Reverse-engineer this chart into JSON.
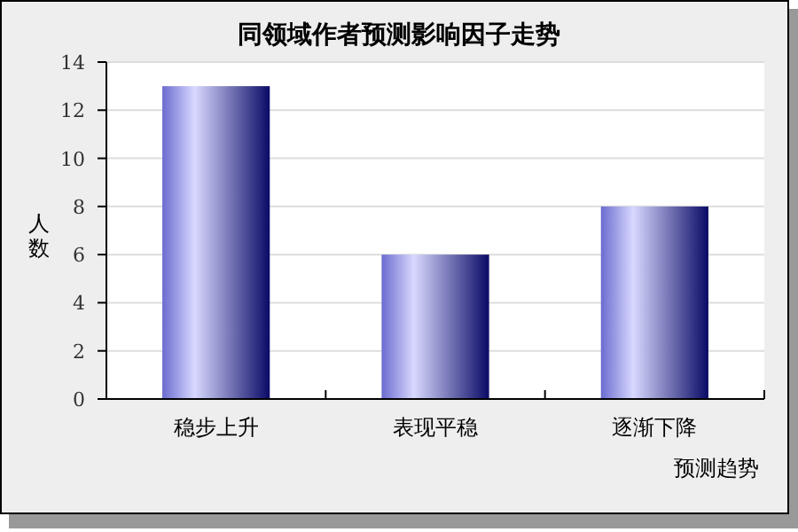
{
  "chart_data": {
    "type": "bar",
    "title": "同领域作者预测影响因子走势",
    "xlabel": "预测趋势",
    "ylabel": "人数",
    "categories": [
      "稳步上升",
      "表现平稳",
      "逐渐下降"
    ],
    "values": [
      13,
      6,
      8
    ],
    "color": "#6b6bd0",
    "ylim": [
      0,
      14
    ],
    "yticks": [
      0,
      2,
      4,
      6,
      8,
      10,
      12,
      14
    ],
    "grid": "y"
  }
}
